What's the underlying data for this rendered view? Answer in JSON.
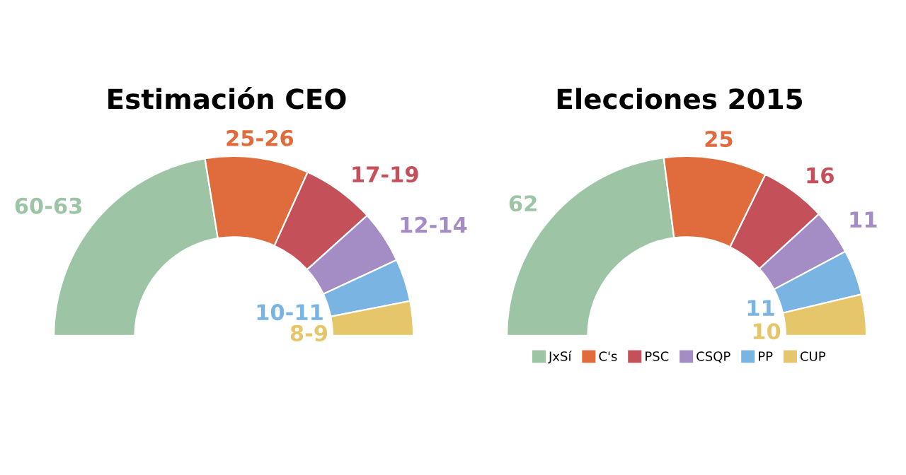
{
  "chart_data": [
    {
      "type": "donut",
      "title": "Estimación CEO",
      "categories": [
        null,
        null,
        null,
        null,
        null,
        null
      ],
      "values": [
        61.5,
        25.5,
        18,
        13,
        10.5,
        8.5
      ],
      "value_labels": [
        "60-63",
        "25-26",
        "17-19",
        "12-14",
        "10-11",
        "8-9"
      ],
      "colors": [
        "#9dc4a5",
        "#e06b3c",
        "#c4505a",
        "#a48cc4",
        "#7ab4e2",
        "#e6c66a"
      ],
      "legend": false
    },
    {
      "type": "donut",
      "title": "Elecciones 2015",
      "categories": [
        "JxSí",
        "C's",
        "PSC",
        "CSQP",
        "PP",
        "CUP"
      ],
      "values": [
        62,
        25,
        16,
        11,
        11,
        10
      ],
      "data_labels": true,
      "colors": [
        "#9dc4a5",
        "#e06b3c",
        "#c4505a",
        "#a48cc4",
        "#7ab4e2",
        "#e6c66a"
      ],
      "legend": "bottom"
    }
  ]
}
